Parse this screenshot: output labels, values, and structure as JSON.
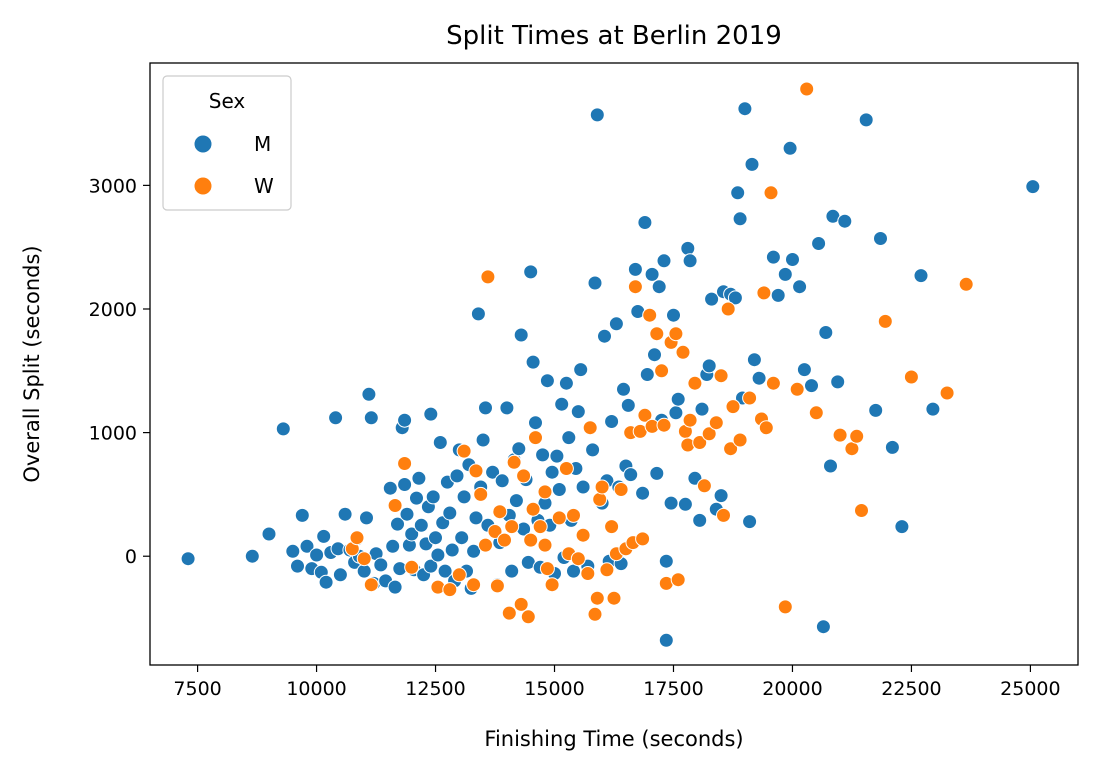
{
  "chart_data": {
    "type": "scatter",
    "title": "Split Times at Berlin 2019",
    "xlabel": "Finishing Time (seconds)",
    "ylabel": "Overall Split (seconds)",
    "xlim": [
      6500,
      26000
    ],
    "ylim": [
      -880,
      3990
    ],
    "xticks": [
      7500,
      10000,
      12500,
      15000,
      17500,
      20000,
      22500,
      25000
    ],
    "yticks": [
      0,
      1000,
      2000,
      3000
    ],
    "legend": {
      "title": "Sex",
      "position": "top-left"
    },
    "grid": false,
    "series": [
      {
        "name": "M",
        "color": "#1f77b4",
        "points": [
          [
            7300,
            -20
          ],
          [
            8650,
            0
          ],
          [
            9000,
            180
          ],
          [
            9300,
            1030
          ],
          [
            9500,
            40
          ],
          [
            9600,
            -80
          ],
          [
            9700,
            330
          ],
          [
            9800,
            80
          ],
          [
            9900,
            -100
          ],
          [
            10000,
            10
          ],
          [
            10100,
            -130
          ],
          [
            10150,
            160
          ],
          [
            10200,
            -210
          ],
          [
            10300,
            30
          ],
          [
            10400,
            1120
          ],
          [
            10450,
            60
          ],
          [
            10500,
            -150
          ],
          [
            10600,
            340
          ],
          [
            10700,
            50
          ],
          [
            10800,
            -50
          ],
          [
            10850,
            140
          ],
          [
            10900,
            0
          ],
          [
            11000,
            -120
          ],
          [
            11050,
            310
          ],
          [
            11100,
            1310
          ],
          [
            11150,
            1120
          ],
          [
            11200,
            -220
          ],
          [
            11250,
            20
          ],
          [
            11350,
            -70
          ],
          [
            11450,
            -200
          ],
          [
            11550,
            550
          ],
          [
            11600,
            80
          ],
          [
            11650,
            -250
          ],
          [
            11700,
            260
          ],
          [
            11750,
            -100
          ],
          [
            11800,
            1040
          ],
          [
            11850,
            580
          ],
          [
            11850,
            1100
          ],
          [
            11900,
            340
          ],
          [
            11950,
            90
          ],
          [
            12000,
            180
          ],
          [
            12050,
            -110
          ],
          [
            12100,
            470
          ],
          [
            12150,
            630
          ],
          [
            12200,
            250
          ],
          [
            12250,
            -150
          ],
          [
            12300,
            100
          ],
          [
            12350,
            400
          ],
          [
            12400,
            -80
          ],
          [
            12400,
            1150
          ],
          [
            12450,
            480
          ],
          [
            12500,
            150
          ],
          [
            12550,
            10
          ],
          [
            12600,
            920
          ],
          [
            12650,
            270
          ],
          [
            12700,
            -120
          ],
          [
            12750,
            600
          ],
          [
            12800,
            350
          ],
          [
            12850,
            50
          ],
          [
            12900,
            -200
          ],
          [
            12950,
            650
          ],
          [
            13000,
            860
          ],
          [
            13050,
            150
          ],
          [
            13100,
            480
          ],
          [
            13150,
            -120
          ],
          [
            13200,
            740
          ],
          [
            13250,
            -260
          ],
          [
            13300,
            40
          ],
          [
            13350,
            310
          ],
          [
            13400,
            1960
          ],
          [
            13450,
            560
          ],
          [
            13500,
            940
          ],
          [
            13550,
            1200
          ],
          [
            13600,
            250
          ],
          [
            13700,
            680
          ],
          [
            13800,
            -230
          ],
          [
            13850,
            110
          ],
          [
            13900,
            610
          ],
          [
            14000,
            1200
          ],
          [
            14050,
            330
          ],
          [
            14100,
            -120
          ],
          [
            14150,
            780
          ],
          [
            14200,
            450
          ],
          [
            14250,
            870
          ],
          [
            14300,
            1790
          ],
          [
            14350,
            220
          ],
          [
            14400,
            620
          ],
          [
            14450,
            -50
          ],
          [
            14500,
            2300
          ],
          [
            14550,
            1570
          ],
          [
            14600,
            1080
          ],
          [
            14650,
            290
          ],
          [
            14700,
            -90
          ],
          [
            14750,
            820
          ],
          [
            14800,
            430
          ],
          [
            14850,
            1420
          ],
          [
            14900,
            250
          ],
          [
            14950,
            680
          ],
          [
            15000,
            -140
          ],
          [
            15050,
            810
          ],
          [
            15100,
            540
          ],
          [
            15150,
            1230
          ],
          [
            15200,
            -10
          ],
          [
            15250,
            1400
          ],
          [
            15300,
            960
          ],
          [
            15350,
            290
          ],
          [
            15400,
            -120
          ],
          [
            15450,
            710
          ],
          [
            15500,
            1170
          ],
          [
            15550,
            1510
          ],
          [
            15600,
            560
          ],
          [
            15700,
            -80
          ],
          [
            15800,
            860
          ],
          [
            15850,
            2210
          ],
          [
            15900,
            3570
          ],
          [
            16000,
            430
          ],
          [
            16050,
            1780
          ],
          [
            16100,
            610
          ],
          [
            16150,
            -40
          ],
          [
            16200,
            1090
          ],
          [
            16300,
            1880
          ],
          [
            16350,
            560
          ],
          [
            16400,
            -60
          ],
          [
            16450,
            1350
          ],
          [
            16500,
            730
          ],
          [
            16550,
            1220
          ],
          [
            16600,
            660
          ],
          [
            16700,
            2320
          ],
          [
            16750,
            1980
          ],
          [
            16850,
            510
          ],
          [
            16900,
            2700
          ],
          [
            16950,
            1470
          ],
          [
            17050,
            2280
          ],
          [
            17100,
            1630
          ],
          [
            17150,
            670
          ],
          [
            17200,
            2180
          ],
          [
            17250,
            1100
          ],
          [
            17300,
            2390
          ],
          [
            17350,
            -40
          ],
          [
            17350,
            -680
          ],
          [
            17450,
            430
          ],
          [
            17500,
            1950
          ],
          [
            17550,
            1160
          ],
          [
            17600,
            1270
          ],
          [
            17750,
            420
          ],
          [
            17800,
            2490
          ],
          [
            17850,
            2390
          ],
          [
            17950,
            630
          ],
          [
            18050,
            290
          ],
          [
            18100,
            1190
          ],
          [
            18200,
            1470
          ],
          [
            18250,
            1540
          ],
          [
            18300,
            2080
          ],
          [
            18400,
            380
          ],
          [
            18500,
            490
          ],
          [
            18550,
            2140
          ],
          [
            18700,
            2120
          ],
          [
            18800,
            2090
          ],
          [
            18850,
            2940
          ],
          [
            18900,
            2730
          ],
          [
            18950,
            1280
          ],
          [
            19000,
            3620
          ],
          [
            19100,
            280
          ],
          [
            19150,
            3170
          ],
          [
            19200,
            1590
          ],
          [
            19300,
            1440
          ],
          [
            19600,
            2420
          ],
          [
            19700,
            2110
          ],
          [
            19850,
            2280
          ],
          [
            19950,
            3300
          ],
          [
            20000,
            2400
          ],
          [
            20150,
            2180
          ],
          [
            20250,
            1510
          ],
          [
            20400,
            1380
          ],
          [
            20550,
            2530
          ],
          [
            20650,
            -570
          ],
          [
            20700,
            1810
          ],
          [
            20800,
            730
          ],
          [
            20850,
            2750
          ],
          [
            20950,
            1410
          ],
          [
            21100,
            2710
          ],
          [
            21550,
            3530
          ],
          [
            21750,
            1180
          ],
          [
            21850,
            2570
          ],
          [
            22100,
            880
          ],
          [
            22300,
            240
          ],
          [
            22700,
            2270
          ],
          [
            22950,
            1190
          ],
          [
            25050,
            2990
          ]
        ]
      },
      {
        "name": "W",
        "color": "#ff7f0e",
        "points": [
          [
            10750,
            60
          ],
          [
            10850,
            150
          ],
          [
            11150,
            -230
          ],
          [
            11650,
            410
          ],
          [
            11850,
            750
          ],
          [
            12550,
            -250
          ],
          [
            12800,
            -270
          ],
          [
            13000,
            -150
          ],
          [
            13100,
            850
          ],
          [
            13300,
            -230
          ],
          [
            13350,
            690
          ],
          [
            13450,
            500
          ],
          [
            13600,
            2260
          ],
          [
            13750,
            200
          ],
          [
            13800,
            -240
          ],
          [
            13850,
            360
          ],
          [
            13950,
            130
          ],
          [
            14050,
            -460
          ],
          [
            14100,
            240
          ],
          [
            14150,
            760
          ],
          [
            14300,
            -390
          ],
          [
            14350,
            650
          ],
          [
            14450,
            -490
          ],
          [
            14500,
            130
          ],
          [
            14550,
            380
          ],
          [
            14600,
            960
          ],
          [
            14700,
            240
          ],
          [
            14800,
            520
          ],
          [
            14850,
            -100
          ],
          [
            14950,
            -230
          ],
          [
            15100,
            310
          ],
          [
            15250,
            710
          ],
          [
            15300,
            20
          ],
          [
            15400,
            330
          ],
          [
            15500,
            -20
          ],
          [
            15600,
            170
          ],
          [
            15700,
            -140
          ],
          [
            15750,
            1040
          ],
          [
            15850,
            -470
          ],
          [
            15900,
            -340
          ],
          [
            15950,
            460
          ],
          [
            16000,
            560
          ],
          [
            16100,
            -110
          ],
          [
            16200,
            240
          ],
          [
            16250,
            -340
          ],
          [
            16300,
            20
          ],
          [
            16400,
            540
          ],
          [
            16500,
            60
          ],
          [
            16600,
            1000
          ],
          [
            16650,
            110
          ],
          [
            16700,
            2180
          ],
          [
            16800,
            1010
          ],
          [
            16850,
            140
          ],
          [
            16900,
            1140
          ],
          [
            17000,
            1950
          ],
          [
            17050,
            1050
          ],
          [
            17150,
            1800
          ],
          [
            17250,
            1500
          ],
          [
            17300,
            1060
          ],
          [
            17350,
            -220
          ],
          [
            17450,
            1730
          ],
          [
            17550,
            1800
          ],
          [
            17600,
            -190
          ],
          [
            17700,
            1650
          ],
          [
            17750,
            1010
          ],
          [
            17800,
            900
          ],
          [
            17850,
            1100
          ],
          [
            17950,
            1400
          ],
          [
            18050,
            920
          ],
          [
            18150,
            570
          ],
          [
            18250,
            990
          ],
          [
            18400,
            1080
          ],
          [
            18500,
            1460
          ],
          [
            18550,
            330
          ],
          [
            18650,
            2000
          ],
          [
            18700,
            870
          ],
          [
            18750,
            1210
          ],
          [
            18900,
            940
          ],
          [
            19100,
            1280
          ],
          [
            19350,
            1110
          ],
          [
            19400,
            2130
          ],
          [
            19450,
            1040
          ],
          [
            19550,
            2940
          ],
          [
            19600,
            1400
          ],
          [
            19850,
            -410
          ],
          [
            20100,
            1350
          ],
          [
            20300,
            3780
          ],
          [
            20500,
            1160
          ],
          [
            21000,
            980
          ],
          [
            21250,
            870
          ],
          [
            21350,
            970
          ],
          [
            21450,
            370
          ],
          [
            21950,
            1900
          ],
          [
            22500,
            1450
          ],
          [
            23250,
            1320
          ],
          [
            23650,
            2200
          ],
          [
            11000,
            -20
          ],
          [
            12000,
            -90
          ],
          [
            13550,
            90
          ],
          [
            14800,
            90
          ]
        ]
      }
    ]
  }
}
